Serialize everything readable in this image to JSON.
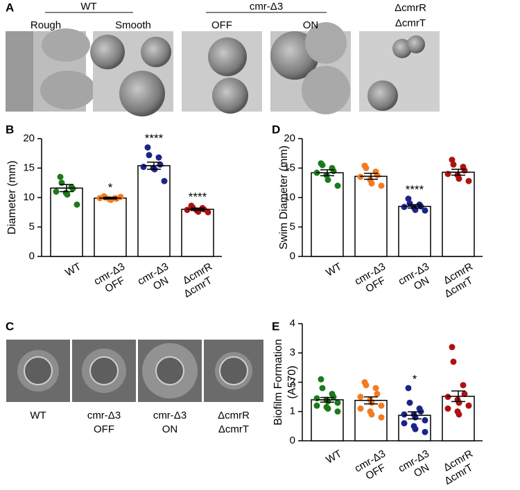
{
  "panel_a": {
    "letter": "A",
    "group_labels": [
      "WT",
      "cmr-Δ3"
    ],
    "image_labels": [
      [
        "Rough"
      ],
      [
        "Smooth"
      ],
      [
        "OFF"
      ],
      [
        "ON"
      ],
      [
        "ΔcmrR",
        "ΔcmrT"
      ]
    ]
  },
  "panel_c": {
    "letter": "C",
    "labels": [
      [
        "WT"
      ],
      [
        "cmr-Δ3",
        "OFF"
      ],
      [
        "cmr-Δ3",
        "ON"
      ],
      [
        "ΔcmrR",
        "ΔcmrT"
      ]
    ]
  },
  "chart_data": [
    {
      "type": "bar",
      "letter": "B",
      "y_label": [
        "Diameter (mm)"
      ],
      "categories": [
        [
          "WT"
        ],
        [
          "cmr-Δ3",
          "OFF"
        ],
        [
          "cmr-Δ3",
          "ON"
        ],
        [
          "ΔcmrR",
          "ΔcmrT"
        ]
      ],
      "colors": [
        "#1b7a1b",
        "#f47b20",
        "#1c2488",
        "#ad1212"
      ],
      "values": [
        11.6,
        9.9,
        15.4,
        8.0
      ],
      "errors": [
        0.6,
        0.15,
        0.6,
        0.2
      ],
      "points": [
        [
          13.5,
          12.5,
          11.8,
          11.5,
          11.0,
          10.8,
          10.5,
          8.8
        ],
        [
          10.2,
          10.0,
          9.9,
          9.8,
          9.9,
          9.7,
          9.6,
          10.1
        ],
        [
          18.5,
          17.2,
          16.8,
          15.6,
          15.2,
          15.0,
          14.8,
          12.8
        ],
        [
          8.6,
          8.3,
          8.2,
          8.0,
          7.9,
          7.8,
          7.6,
          7.5
        ]
      ],
      "annotations": [
        null,
        "*",
        "****",
        "****"
      ],
      "ylim": [
        0,
        20
      ],
      "yticks": [
        0,
        5,
        10,
        15,
        20
      ]
    },
    {
      "type": "bar",
      "letter": "D",
      "y_label": [
        "Swim Diameter (mm)"
      ],
      "categories": [
        [
          "WT"
        ],
        [
          "cmr-Δ3",
          "OFF"
        ],
        [
          "cmr-Δ3",
          "ON"
        ],
        [
          "ΔcmrR",
          "ΔcmrT"
        ]
      ],
      "colors": [
        "#1b7a1b",
        "#f47b20",
        "#1c2488",
        "#ad1212"
      ],
      "values": [
        14.2,
        13.6,
        8.5,
        14.3
      ],
      "errors": [
        0.5,
        0.5,
        0.3,
        0.5
      ],
      "points": [
        [
          15.8,
          15.5,
          15.0,
          14.5,
          14.2,
          13.8,
          13.0,
          12.0
        ],
        [
          15.4,
          15.0,
          14.4,
          13.8,
          13.5,
          13.0,
          12.4,
          12.0
        ],
        [
          9.8,
          9.0,
          8.8,
          8.5,
          8.4,
          8.3,
          7.9,
          7.8
        ],
        [
          16.4,
          15.6,
          15.2,
          14.6,
          14.0,
          13.8,
          13.2,
          12.8
        ]
      ],
      "annotations": [
        null,
        null,
        "****",
        null
      ],
      "ylim": [
        0,
        20
      ],
      "yticks": [
        0,
        5,
        10,
        15,
        20
      ]
    },
    {
      "type": "bar",
      "letter": "E",
      "y_label": [
        "Biofilm Formation",
        "(A570)"
      ],
      "categories": [
        [
          "WT"
        ],
        [
          "cmr-Δ3",
          "OFF"
        ],
        [
          "cmr-Δ3",
          "ON"
        ],
        [
          "ΔcmrR",
          "ΔcmrT"
        ]
      ],
      "colors": [
        "#1b7a1b",
        "#f47b20",
        "#1c2488",
        "#ad1212"
      ],
      "values": [
        1.4,
        1.38,
        0.87,
        1.52
      ],
      "errors": [
        0.08,
        0.12,
        0.12,
        0.18
      ],
      "points": [
        [
          2.1,
          1.8,
          1.6,
          1.5,
          1.45,
          1.4,
          1.35,
          1.3,
          1.2,
          1.15,
          1.1,
          1.0
        ],
        [
          2.0,
          1.9,
          1.8,
          1.6,
          1.5,
          1.4,
          1.3,
          1.2,
          1.1,
          1.0,
          0.9,
          0.8
        ],
        [
          1.8,
          1.3,
          1.1,
          1.0,
          0.9,
          0.9,
          0.8,
          0.7,
          0.6,
          0.5,
          0.4,
          0.3
        ],
        [
          3.2,
          2.7,
          1.9,
          1.6,
          1.5,
          1.4,
          1.3,
          1.2,
          1.1,
          1.0,
          0.9
        ]
      ],
      "annotations": [
        null,
        null,
        "*",
        null
      ],
      "ylim": [
        0,
        4
      ],
      "yticks": [
        0,
        1,
        2,
        3,
        4
      ]
    }
  ]
}
